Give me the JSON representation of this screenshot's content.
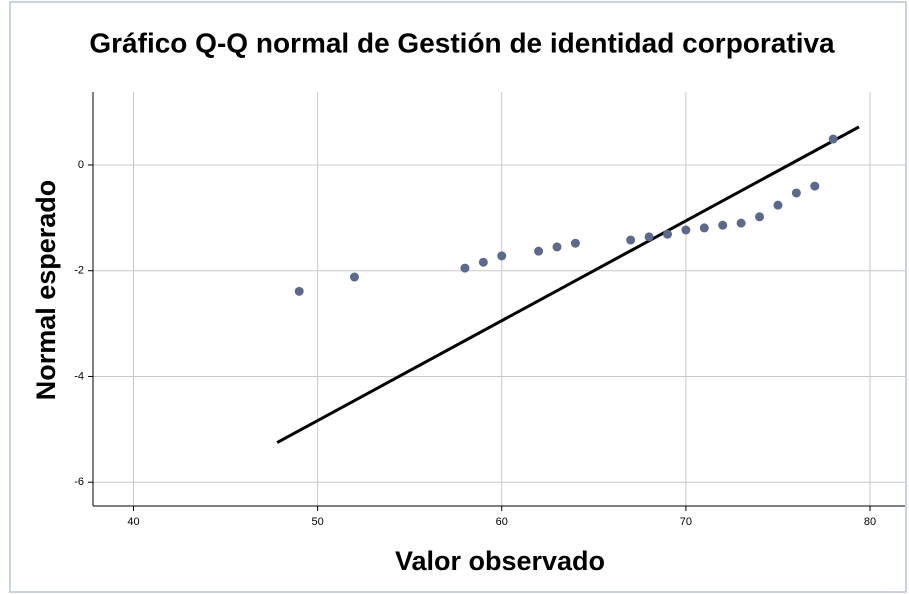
{
  "chart_data": {
    "type": "scatter",
    "title": "Gráfico Q-Q normal de Gestión de identidad corporativa",
    "x_label": "Valor observado",
    "y_label": "Normal esperado",
    "x": [
      49,
      52,
      58,
      59,
      60,
      62,
      63,
      64,
      67,
      68,
      69,
      70,
      71,
      72,
      73,
      74,
      75,
      76,
      77,
      78
    ],
    "values": [
      -2.39,
      -2.12,
      -1.95,
      -1.84,
      -1.72,
      -1.63,
      -1.55,
      -1.48,
      -1.42,
      -1.36,
      -1.31,
      -1.23,
      -1.19,
      -1.14,
      -1.1,
      -0.98,
      -0.76,
      -0.53,
      -0.4,
      0.49
    ],
    "color": "#5b6a8c",
    "reference_line": {
      "x": [
        47.8,
        79.4
      ],
      "values": [
        -5.25,
        0.72
      ],
      "color": "#000000"
    },
    "xlim": [
      37.8,
      81.9
    ],
    "ylim": [
      -6.45,
      1.38
    ],
    "xticks": [
      40,
      50,
      60,
      70,
      80
    ],
    "yticks": [
      0,
      -2,
      -4,
      -6
    ],
    "grid": true
  }
}
